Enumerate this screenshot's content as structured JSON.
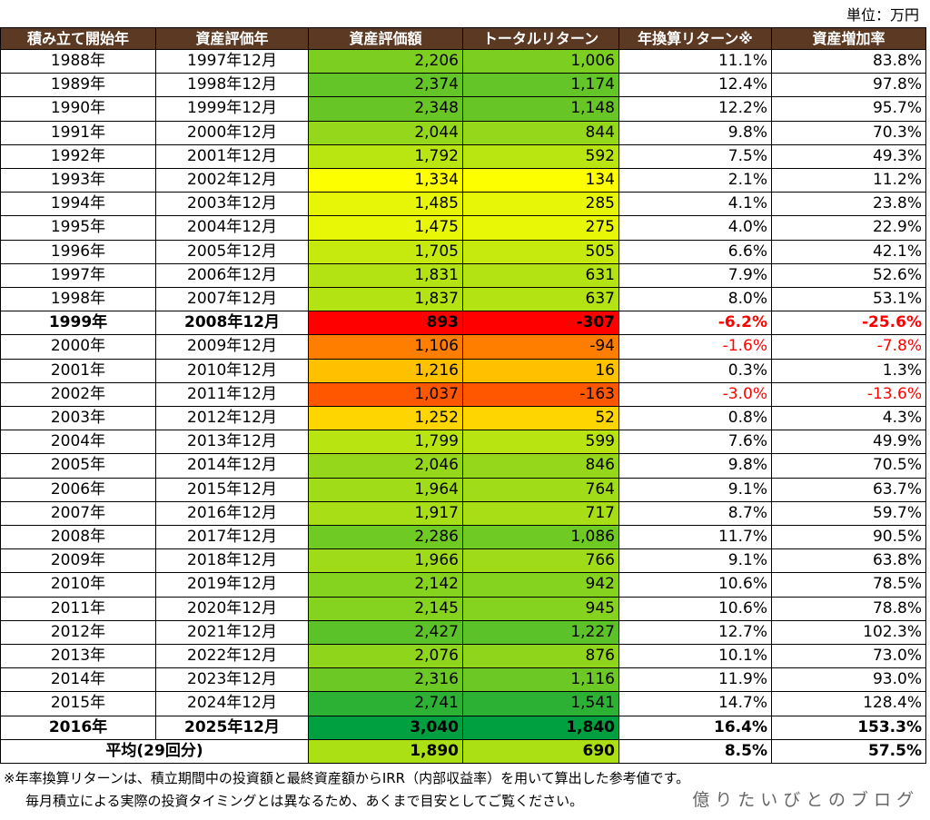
{
  "header": {
    "unit": "単位：万円"
  },
  "table": {
    "columns": [
      "積み立て開始年",
      "資産評価年",
      "資産評価額",
      "トータルリターン",
      "年換算リターン※",
      "資産増加率"
    ],
    "rows": [
      {
        "cells": [
          "1988年",
          "1997年12月",
          "2,206",
          "1,006",
          "11.1%",
          "83.8%"
        ]
      },
      {
        "cells": [
          "1989年",
          "1998年12月",
          "2,374",
          "1,174",
          "12.4%",
          "97.8%"
        ]
      },
      {
        "cells": [
          "1990年",
          "1999年12月",
          "2,348",
          "1,148",
          "12.2%",
          "95.7%"
        ]
      },
      {
        "cells": [
          "1991年",
          "2000年12月",
          "2,044",
          "844",
          "9.8%",
          "70.3%"
        ]
      },
      {
        "cells": [
          "1992年",
          "2001年12月",
          "1,792",
          "592",
          "7.5%",
          "49.3%"
        ]
      },
      {
        "cells": [
          "1993年",
          "2002年12月",
          "1,334",
          "134",
          "2.1%",
          "11.2%"
        ]
      },
      {
        "cells": [
          "1994年",
          "2003年12月",
          "1,485",
          "285",
          "4.1%",
          "23.8%"
        ]
      },
      {
        "cells": [
          "1995年",
          "2004年12月",
          "1,475",
          "275",
          "4.0%",
          "22.9%"
        ]
      },
      {
        "cells": [
          "1996年",
          "2005年12月",
          "1,705",
          "505",
          "6.6%",
          "42.1%"
        ]
      },
      {
        "cells": [
          "1997年",
          "2006年12月",
          "1,831",
          "631",
          "7.9%",
          "52.6%"
        ]
      },
      {
        "cells": [
          "1998年",
          "2007年12月",
          "1,837",
          "637",
          "8.0%",
          "53.1%"
        ]
      },
      {
        "cells": [
          "1999年",
          "2008年12月",
          "893",
          "-307",
          "-6.2%",
          "-25.6%"
        ],
        "bold": true
      },
      {
        "cells": [
          "2000年",
          "2009年12月",
          "1,106",
          "-94",
          "-1.6%",
          "-7.8%"
        ]
      },
      {
        "cells": [
          "2001年",
          "2010年12月",
          "1,216",
          "16",
          "0.3%",
          "1.3%"
        ]
      },
      {
        "cells": [
          "2002年",
          "2011年12月",
          "1,037",
          "-163",
          "-3.0%",
          "-13.6%"
        ]
      },
      {
        "cells": [
          "2003年",
          "2012年12月",
          "1,252",
          "52",
          "0.8%",
          "4.3%"
        ]
      },
      {
        "cells": [
          "2004年",
          "2013年12月",
          "1,799",
          "599",
          "7.6%",
          "49.9%"
        ]
      },
      {
        "cells": [
          "2005年",
          "2014年12月",
          "2,046",
          "846",
          "9.8%",
          "70.5%"
        ]
      },
      {
        "cells": [
          "2006年",
          "2015年12月",
          "1,964",
          "764",
          "9.1%",
          "63.7%"
        ]
      },
      {
        "cells": [
          "2007年",
          "2016年12月",
          "1,917",
          "717",
          "8.7%",
          "59.7%"
        ]
      },
      {
        "cells": [
          "2008年",
          "2017年12月",
          "2,286",
          "1,086",
          "11.7%",
          "90.5%"
        ]
      },
      {
        "cells": [
          "2009年",
          "2018年12月",
          "1,966",
          "766",
          "9.1%",
          "63.8%"
        ]
      },
      {
        "cells": [
          "2010年",
          "2019年12月",
          "2,142",
          "942",
          "10.6%",
          "78.5%"
        ]
      },
      {
        "cells": [
          "2011年",
          "2020年12月",
          "2,145",
          "945",
          "10.6%",
          "78.8%"
        ]
      },
      {
        "cells": [
          "2012年",
          "2021年12月",
          "2,427",
          "1,227",
          "12.7%",
          "102.3%"
        ]
      },
      {
        "cells": [
          "2013年",
          "2022年12月",
          "2,076",
          "876",
          "10.1%",
          "73.0%"
        ]
      },
      {
        "cells": [
          "2014年",
          "2023年12月",
          "2,316",
          "1,116",
          "11.9%",
          "93.0%"
        ]
      },
      {
        "cells": [
          "2015年",
          "2024年12月",
          "2,741",
          "1,541",
          "14.7%",
          "128.4%"
        ]
      },
      {
        "cells": [
          "2016年",
          "2025年12月",
          "3,040",
          "1,840",
          "16.4%",
          "153.3%"
        ],
        "bold": true
      }
    ],
    "average": {
      "label": "平均(29回分)",
      "values": [
        "1,890",
        "690",
        "8.5%",
        "57.5%"
      ]
    }
  },
  "footnotes": [
    "※年率換算リターンは、積立期間中の投資額と最終資産額からIRR（内部収益率）を用いて算出した参考値です。",
    "毎月積立による実際の投資タイミングとは異なるため、あくまで目安としてご覧ください。"
  ],
  "watermark": "億りたいびとのブログ"
}
